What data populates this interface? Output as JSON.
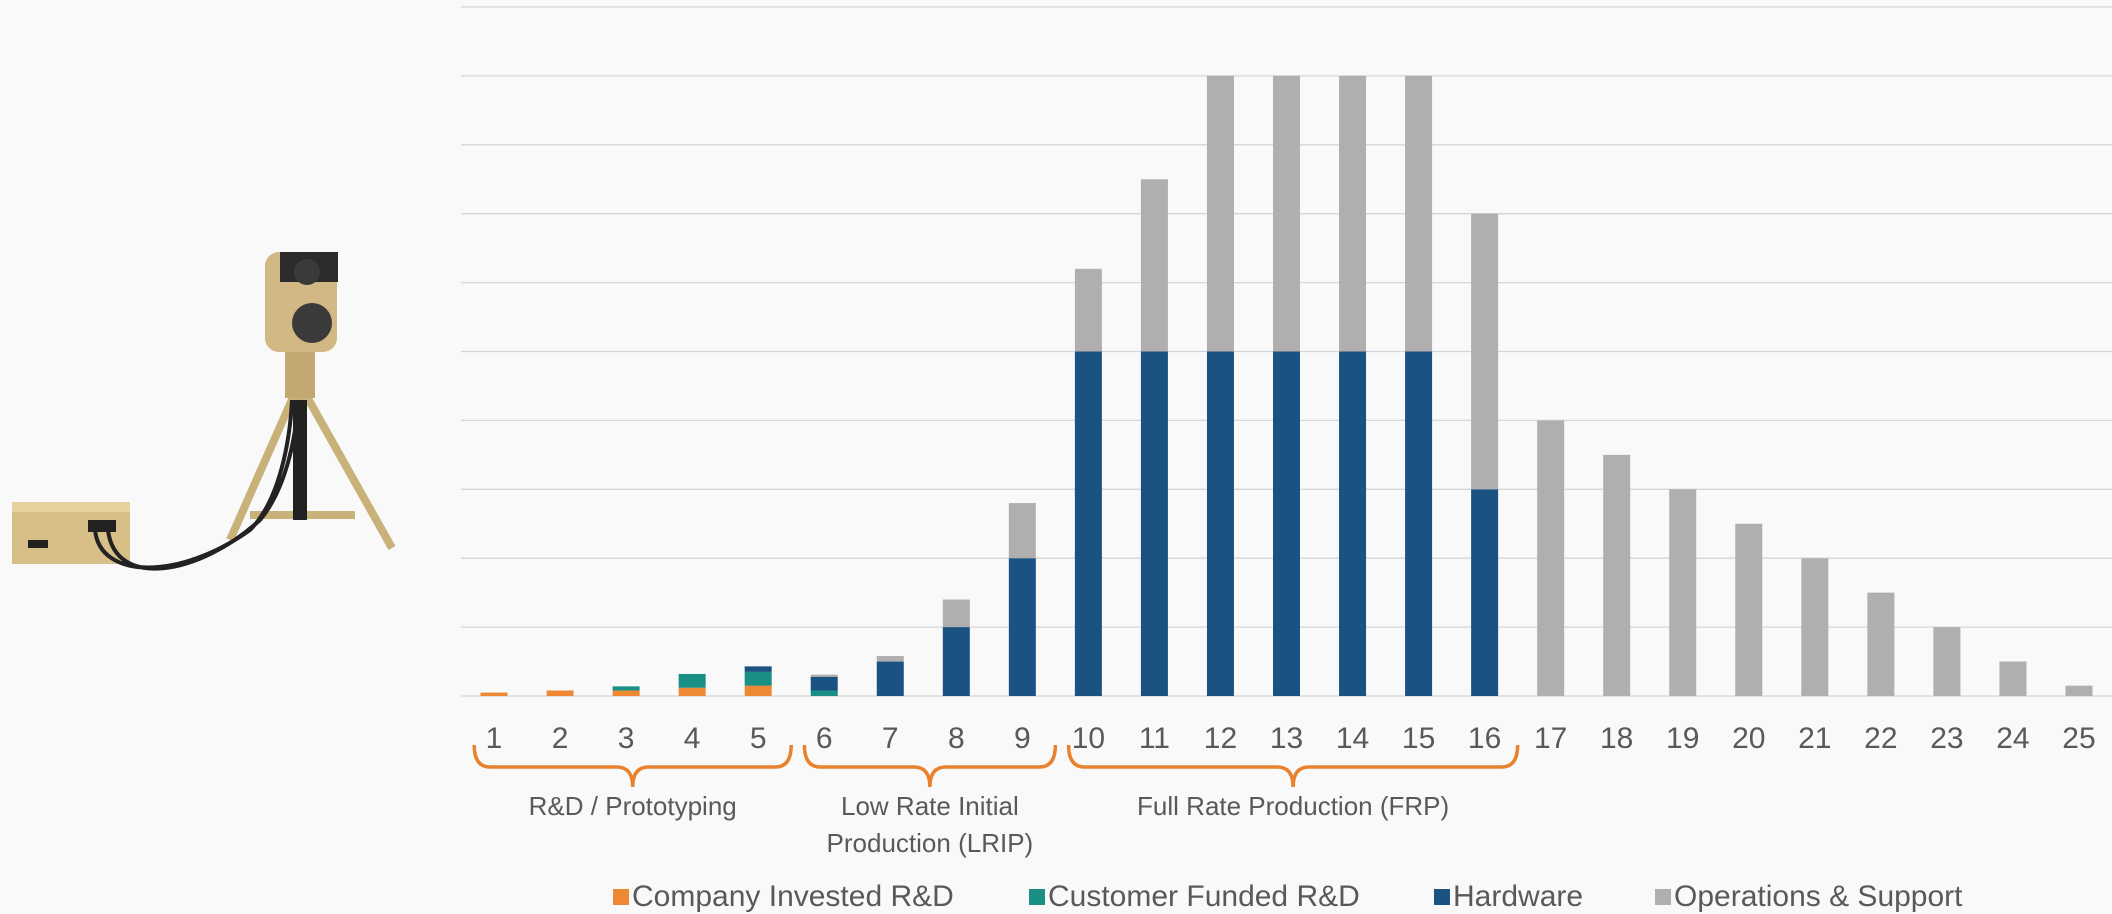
{
  "chart_data": {
    "type": "stacked-bar",
    "categories": [
      "1",
      "2",
      "3",
      "4",
      "5",
      "6",
      "7",
      "8",
      "9",
      "10",
      "11",
      "12",
      "13",
      "14",
      "15",
      "16",
      "17",
      "18",
      "19",
      "20",
      "21",
      "22",
      "23",
      "24",
      "25"
    ],
    "series": [
      {
        "name": "Company Invested R&D",
        "color": "#ee8833",
        "values": [
          0.05,
          0.08,
          0.08,
          0.12,
          0.15,
          0,
          0,
          0,
          0,
          0,
          0,
          0,
          0,
          0,
          0,
          0,
          0,
          0,
          0,
          0,
          0,
          0,
          0,
          0,
          0
        ]
      },
      {
        "name": "Customer Funded R&D",
        "color": "#1a8f86",
        "values": [
          0,
          0,
          0.06,
          0.2,
          0.2,
          0.08,
          0,
          0,
          0,
          0,
          0,
          0,
          0,
          0,
          0,
          0,
          0,
          0,
          0,
          0,
          0,
          0,
          0,
          0,
          0
        ]
      },
      {
        "name": "Hardware",
        "color": "#1a5282",
        "values": [
          0,
          0,
          0,
          0,
          0.08,
          0.2,
          0.5,
          1,
          2,
          5,
          5,
          5,
          5,
          5,
          5,
          3,
          0,
          0,
          0,
          0,
          0,
          0,
          0,
          0,
          0
        ]
      },
      {
        "name": "Operations & Support",
        "color": "#b0aeae",
        "values": [
          0,
          0,
          0,
          0,
          0,
          0.03,
          0.08,
          0.4,
          0.8,
          1.2,
          2.5,
          4,
          4,
          4,
          4,
          4,
          4,
          3.5,
          3,
          2.5,
          2,
          1.5,
          1,
          0.5,
          0.15
        ]
      }
    ],
    "annotations": [
      [
        "R&D / Prototyping"
      ],
      [
        "Low Rate Initial",
        "Production (LRIP)"
      ],
      [
        "Full Rate Production (FRP)"
      ]
    ],
    "annotation_color": "#e8822e",
    "ylim": [
      0,
      10
    ],
    "yticks": [
      0,
      1,
      2,
      3,
      4,
      5,
      6,
      7,
      8,
      9,
      10
    ],
    "grid": true
  }
}
